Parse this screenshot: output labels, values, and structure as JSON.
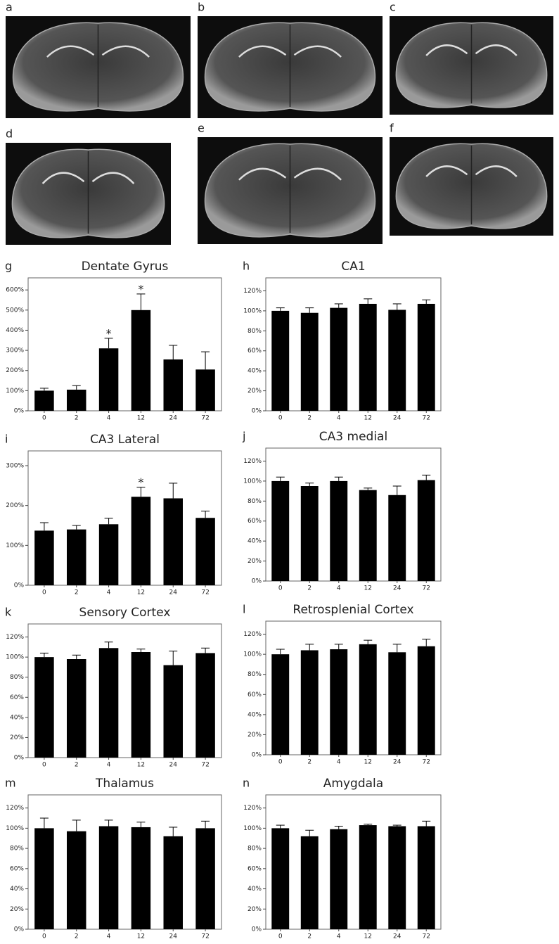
{
  "images": [
    {
      "label": "a"
    },
    {
      "label": "b"
    },
    {
      "label": "c"
    },
    {
      "label": "d"
    },
    {
      "label": "e"
    },
    {
      "label": "f"
    }
  ],
  "chart_data": [
    {
      "type": "bar",
      "panel": "g",
      "title": "Dentate Gyrus",
      "categories": [
        "0",
        "2",
        "4",
        "12",
        "24",
        "72"
      ],
      "values": [
        100,
        105,
        310,
        500,
        255,
        205
      ],
      "errors": [
        12,
        20,
        50,
        80,
        70,
        88
      ],
      "markers": [
        null,
        null,
        "*",
        "*",
        null,
        null
      ],
      "color": "#000000",
      "ylim": [
        0,
        660
      ],
      "yticks": [
        {
          "value": 0,
          "label": "0%"
        },
        {
          "value": 100,
          "label": "100%"
        },
        {
          "value": 200,
          "label": "200%"
        },
        {
          "value": 300,
          "label": "300%"
        },
        {
          "value": 400,
          "label": "400%"
        },
        {
          "value": 500,
          "label": "500%"
        },
        {
          "value": 600,
          "label": "600%"
        }
      ]
    },
    {
      "type": "bar",
      "panel": "h",
      "title": "CA1",
      "categories": [
        "0",
        "2",
        "4",
        "12",
        "24",
        "72"
      ],
      "values": [
        100,
        98,
        103,
        107,
        101,
        107
      ],
      "errors": [
        3,
        5,
        4,
        5,
        6,
        4
      ],
      "color": "#000000",
      "ylim": [
        0,
        133
      ],
      "yticks": [
        {
          "value": 0,
          "label": "0%"
        },
        {
          "value": 20,
          "label": "20%"
        },
        {
          "value": 40,
          "label": "40%"
        },
        {
          "value": 60,
          "label": "60%"
        },
        {
          "value": 80,
          "label": "80%"
        },
        {
          "value": 100,
          "label": "100%"
        },
        {
          "value": 120,
          "label": "120%"
        }
      ]
    },
    {
      "type": "bar",
      "panel": "i",
      "title": "CA3 Lateral",
      "categories": [
        "0",
        "2",
        "4",
        "12",
        "24",
        "72"
      ],
      "values": [
        137,
        140,
        153,
        222,
        218,
        169
      ],
      "errors": [
        20,
        10,
        15,
        24,
        38,
        17
      ],
      "markers": [
        null,
        null,
        null,
        "*",
        null,
        null
      ],
      "color": "#000000",
      "ylim": [
        0,
        337
      ],
      "yticks": [
        {
          "value": 0,
          "label": "0%"
        },
        {
          "value": 100,
          "label": "100%"
        },
        {
          "value": 200,
          "label": "200%"
        },
        {
          "value": 300,
          "label": "300%"
        }
      ]
    },
    {
      "type": "bar",
      "panel": "j",
      "title": "CA3 medial",
      "categories": [
        "0",
        "2",
        "4",
        "12",
        "24",
        "72"
      ],
      "values": [
        100,
        95,
        100,
        91,
        86,
        101
      ],
      "errors": [
        4,
        3,
        4,
        2,
        9,
        5
      ],
      "color": "#000000",
      "ylim": [
        0,
        133
      ],
      "yticks": [
        {
          "value": 0,
          "label": "0%"
        },
        {
          "value": 20,
          "label": "20%"
        },
        {
          "value": 40,
          "label": "40%"
        },
        {
          "value": 60,
          "label": "60%"
        },
        {
          "value": 80,
          "label": "80%"
        },
        {
          "value": 100,
          "label": "100%"
        },
        {
          "value": 120,
          "label": "120%"
        }
      ]
    },
    {
      "type": "bar",
      "panel": "k",
      "title": "Sensory Cortex",
      "categories": [
        "0",
        "2",
        "4",
        "12",
        "24",
        "72"
      ],
      "values": [
        100,
        98,
        109,
        105,
        92,
        104
      ],
      "errors": [
        4,
        4,
        6,
        3,
        14,
        5
      ],
      "color": "#000000",
      "ylim": [
        0,
        133
      ],
      "yticks": [
        {
          "value": 0,
          "label": "0%"
        },
        {
          "value": 20,
          "label": "20%"
        },
        {
          "value": 40,
          "label": "40%"
        },
        {
          "value": 60,
          "label": "60%"
        },
        {
          "value": 80,
          "label": "80%"
        },
        {
          "value": 100,
          "label": "100%"
        },
        {
          "value": 120,
          "label": "120%"
        }
      ]
    },
    {
      "type": "bar",
      "panel": "l",
      "title": "Retrosplenial Cortex",
      "categories": [
        "0",
        "2",
        "4",
        "12",
        "24",
        "72"
      ],
      "values": [
        100,
        104,
        105,
        110,
        102,
        108
      ],
      "errors": [
        5,
        6,
        5,
        4,
        8,
        7
      ],
      "color": "#000000",
      "ylim": [
        0,
        133
      ],
      "yticks": [
        {
          "value": 0,
          "label": "0%"
        },
        {
          "value": 20,
          "label": "20%"
        },
        {
          "value": 40,
          "label": "40%"
        },
        {
          "value": 60,
          "label": "60%"
        },
        {
          "value": 80,
          "label": "80%"
        },
        {
          "value": 100,
          "label": "100%"
        },
        {
          "value": 120,
          "label": "120%"
        }
      ]
    },
    {
      "type": "bar",
      "panel": "m",
      "title": "Thalamus",
      "categories": [
        "0",
        "2",
        "4",
        "12",
        "24",
        "72"
      ],
      "values": [
        100,
        97,
        102,
        101,
        92,
        100
      ],
      "errors": [
        10,
        11,
        6,
        5,
        9,
        7
      ],
      "color": "#000000",
      "ylim": [
        0,
        133
      ],
      "yticks": [
        {
          "value": 0,
          "label": "0%"
        },
        {
          "value": 20,
          "label": "20%"
        },
        {
          "value": 40,
          "label": "40%"
        },
        {
          "value": 60,
          "label": "60%"
        },
        {
          "value": 80,
          "label": "80%"
        },
        {
          "value": 100,
          "label": "100%"
        },
        {
          "value": 120,
          "label": "120%"
        }
      ]
    },
    {
      "type": "bar",
      "panel": "n",
      "title": "Amygdala",
      "categories": [
        "0",
        "2",
        "4",
        "12",
        "24",
        "72"
      ],
      "values": [
        100,
        92,
        99,
        103,
        102,
        102
      ],
      "errors": [
        3,
        6,
        3,
        1,
        1,
        5
      ],
      "color": "#000000",
      "ylim": [
        0,
        133
      ],
      "yticks": [
        {
          "value": 0,
          "label": "0%"
        },
        {
          "value": 20,
          "label": "20%"
        },
        {
          "value": 40,
          "label": "40%"
        },
        {
          "value": 60,
          "label": "60%"
        },
        {
          "value": 80,
          "label": "80%"
        },
        {
          "value": 100,
          "label": "100%"
        },
        {
          "value": 120,
          "label": "120%"
        }
      ]
    }
  ]
}
